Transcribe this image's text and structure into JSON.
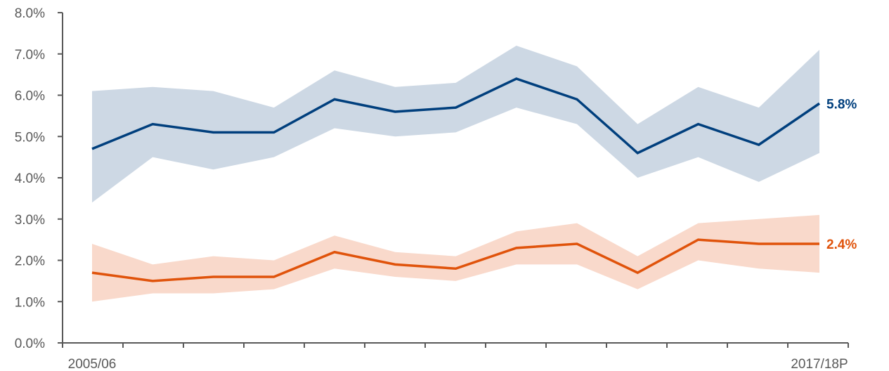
{
  "chart_data": {
    "type": "line",
    "title": "",
    "xlabel": "",
    "ylabel": "",
    "ylim": [
      0,
      0.08
    ],
    "y_tick_format": "percent_1dp",
    "y_ticks": [
      "0.0%",
      "1.0%",
      "2.0%",
      "3.0%",
      "4.0%",
      "5.0%",
      "6.0%",
      "7.0%",
      "8.0%"
    ],
    "x_points": 13,
    "x_tick_labels": {
      "first": "2005/06",
      "last": "2017/18P"
    },
    "grid": false,
    "legend": "none",
    "series": [
      {
        "color": "#003f7d",
        "band_color": "#cdd8e4",
        "values": [
          0.047,
          0.053,
          0.051,
          0.051,
          0.059,
          0.056,
          0.057,
          0.064,
          0.059,
          0.046,
          0.053,
          0.048,
          0.058
        ],
        "lower": [
          0.034,
          0.045,
          0.042,
          0.045,
          0.052,
          0.05,
          0.051,
          0.057,
          0.053,
          0.04,
          0.045,
          0.039,
          0.046
        ],
        "upper": [
          0.061,
          0.062,
          0.061,
          0.057,
          0.066,
          0.062,
          0.063,
          0.072,
          0.067,
          0.053,
          0.062,
          0.057,
          0.071
        ],
        "end_label": "5.8%"
      },
      {
        "color": "#e0530b",
        "band_color": "#f9d9cb",
        "values": [
          0.017,
          0.015,
          0.016,
          0.016,
          0.022,
          0.019,
          0.018,
          0.023,
          0.024,
          0.017,
          0.025,
          0.024,
          0.024
        ],
        "lower": [
          0.01,
          0.012,
          0.012,
          0.013,
          0.018,
          0.016,
          0.015,
          0.019,
          0.019,
          0.013,
          0.02,
          0.018,
          0.017
        ],
        "upper": [
          0.024,
          0.019,
          0.021,
          0.02,
          0.026,
          0.022,
          0.021,
          0.027,
          0.029,
          0.021,
          0.029,
          0.03,
          0.031
        ],
        "end_label": "2.4%"
      }
    ]
  }
}
